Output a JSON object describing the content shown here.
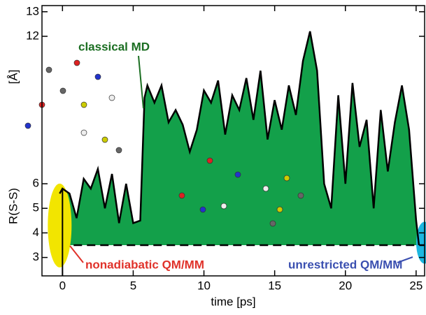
{
  "chart_data": {
    "type": "area",
    "xlabel": "time [ps]",
    "ylabel": "R(S-S)",
    "ylabel_unit": "[Å]",
    "x": [
      -0.2,
      0,
      0.5,
      1,
      1.5,
      2,
      2.5,
      3,
      3.5,
      4,
      4.5,
      5,
      5.5,
      5.8,
      6,
      6.5,
      7,
      7.5,
      8,
      8.5,
      9,
      9.5,
      10,
      10.5,
      11,
      11.5,
      12,
      12.5,
      13,
      13.5,
      14,
      14.5,
      15,
      15.5,
      16,
      16.5,
      17,
      17.5,
      18,
      18.5,
      19,
      19.5,
      20,
      20.5,
      21,
      21.5,
      22,
      22.5,
      23,
      23.5,
      24,
      24.5,
      25,
      25.2
    ],
    "series": [
      {
        "name": "classical MD",
        "color": "#13a04a",
        "line_color": "#000000",
        "values": [
          5.6,
          5.8,
          5.6,
          4.6,
          6.2,
          5.8,
          6.6,
          5.0,
          6.4,
          4.4,
          6.0,
          4.4,
          4.5,
          9.5,
          10.0,
          9.3,
          10.0,
          8.5,
          9.0,
          8.4,
          7.3,
          8.2,
          9.8,
          9.3,
          10.2,
          8.0,
          9.6,
          9.0,
          10.3,
          8.6,
          10.6,
          7.8,
          9.4,
          8.2,
          10.0,
          8.8,
          11.0,
          12.2,
          10.6,
          6.0,
          5.0,
          9.6,
          6.0,
          10.1,
          7.5,
          8.6,
          5.0,
          9.0,
          6.5,
          8.5,
          10.0,
          8.2,
          4.5,
          3.5
        ]
      }
    ],
    "baseline": 3.5,
    "xlim": [
      -1.45,
      25.6
    ],
    "ylim": [
      2.25,
      13.25
    ],
    "xticks": [
      0,
      5,
      10,
      15,
      20,
      25
    ],
    "yticks": [
      3,
      4,
      5,
      6,
      12,
      13
    ],
    "annotations": [
      {
        "text": "classical MD",
        "color": "#1b6e22"
      },
      {
        "text": "nonadiabatic QM/MM",
        "color": "#e0322a"
      },
      {
        "text": "unrestricted QM/MM",
        "color": "#3a4fb0"
      }
    ]
  }
}
